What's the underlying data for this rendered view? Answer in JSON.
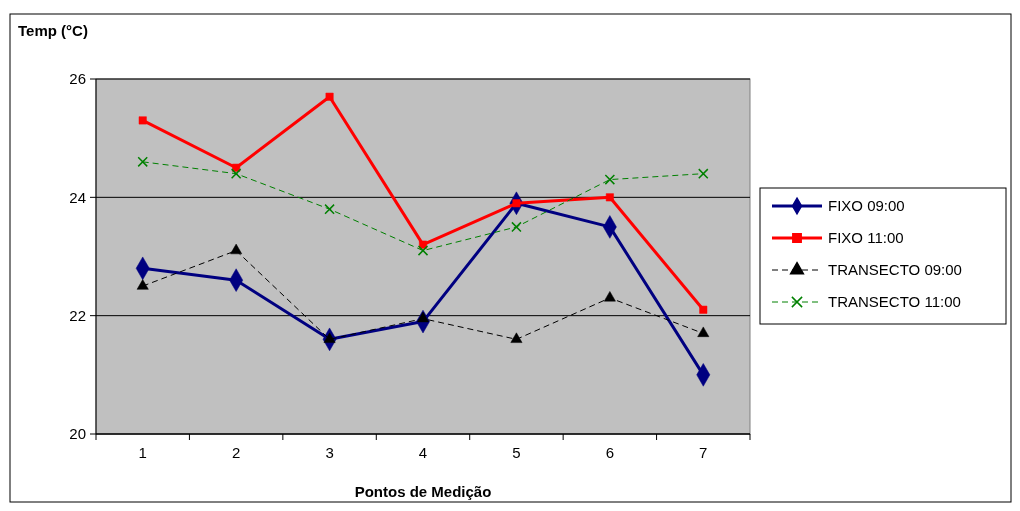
{
  "chart_data": {
    "type": "line",
    "ylabel": "Temp (°C)",
    "xlabel": "Pontos de Medição",
    "categories": [
      "1",
      "2",
      "3",
      "4",
      "5",
      "6",
      "7"
    ],
    "ylim": [
      20,
      26
    ],
    "yticks": [
      20,
      22,
      24,
      26
    ],
    "grid": "y",
    "legend": "right",
    "series": [
      {
        "name": "FIXO 09:00",
        "color": "#000080",
        "marker": "diamond",
        "line_style": "solid",
        "values": [
          22.8,
          22.6,
          21.6,
          21.9,
          23.9,
          23.5,
          21.0
        ]
      },
      {
        "name": "FIXO 11:00",
        "color": "#ff0000",
        "marker": "square",
        "line_style": "solid",
        "values": [
          25.3,
          24.5,
          25.7,
          23.2,
          23.9,
          24.0,
          22.1
        ]
      },
      {
        "name": "TRANSECTO 09:00",
        "color": "#000000",
        "marker": "triangle",
        "line_style": "dashed",
        "values": [
          22.5,
          23.1,
          21.6,
          21.95,
          21.6,
          22.3,
          21.7
        ]
      },
      {
        "name": "TRANSECTO 11:00",
        "color": "#008000",
        "marker": "cross",
        "line_style": "dashed",
        "values": [
          24.6,
          24.4,
          23.8,
          23.1,
          23.5,
          24.3,
          24.4
        ]
      }
    ]
  }
}
